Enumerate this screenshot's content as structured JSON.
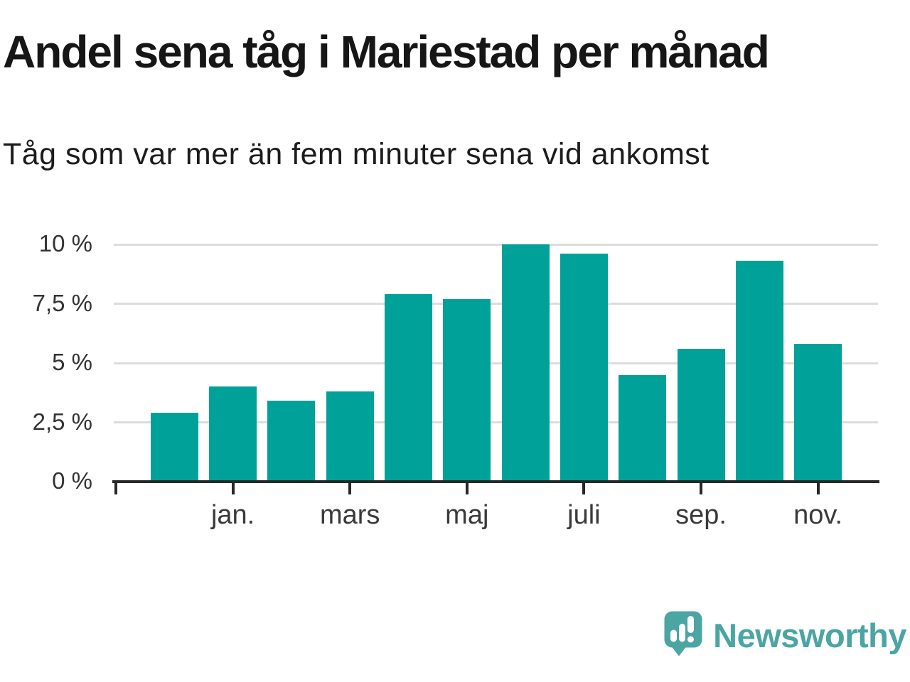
{
  "header": {
    "title": "Andel sena tåg i Mariestad per månad",
    "subtitle": "Tåg som var mer än fem minuter sena vid ankomst"
  },
  "chart_data": {
    "type": "bar",
    "title": "Andel sena tåg i Mariestad per månad",
    "subtitle": "Tåg som var mer än fem minuter sena vid ankomst",
    "unit": "%",
    "categories": [
      "",
      "jan.",
      "",
      "mars",
      "",
      "maj",
      "",
      "juli",
      "",
      "sep.",
      "",
      "nov."
    ],
    "values": [
      2.9,
      4.0,
      3.4,
      3.8,
      7.9,
      7.7,
      10.0,
      9.6,
      4.5,
      5.6,
      9.3,
      5.8
    ],
    "x_tick_indices": [
      1,
      3,
      5,
      7,
      9,
      11
    ],
    "x_tick_labels": [
      "jan.",
      "mars",
      "maj",
      "juli",
      "sep.",
      "nov."
    ],
    "y_ticks": [
      0,
      2.5,
      5,
      7.5,
      10
    ],
    "y_tick_labels": [
      "0 %",
      "2,5 %",
      "5 %",
      "7,5 %",
      "10 %"
    ],
    "ylim": [
      0,
      10.5
    ],
    "grid": true,
    "legend": "none",
    "bar_color": "#00a199"
  },
  "footer": {
    "brand": "Newsworthy"
  },
  "colors": {
    "bar": "#00a199",
    "title_text": "#161616",
    "subtitle_text": "#1c1c1c",
    "axis": "#282828",
    "gridline": "#dcdcdc",
    "y_label_text": "#333333",
    "x_label_text": "#3a3a3a",
    "logo": "#4ba5a3",
    "logo_mark": "#ffffff",
    "background": "#ffffff"
  }
}
